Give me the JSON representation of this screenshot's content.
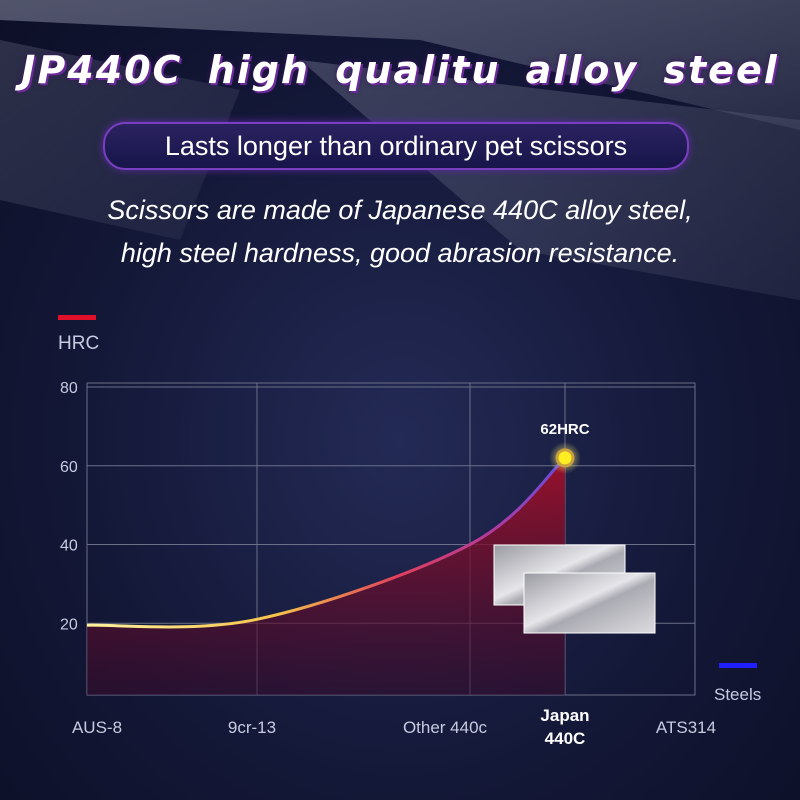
{
  "chart_data": {
    "type": "line",
    "title": "JP440C high qualitu alloy steel",
    "subtitle": "Lasts longer than ordinary pet scissors",
    "description": [
      "Scissors are made of Japanese 440C alloy steel,",
      "high steel hardness, good abrasion resistance."
    ],
    "y_label": "HRC",
    "x_label": "Steels",
    "categories": [
      "AUS-8",
      "9cr-13",
      "Other 440c",
      "Japan 440C",
      "ATS314"
    ],
    "values": [
      19.5,
      21,
      40,
      62,
      null
    ],
    "value_labels": [
      null,
      null,
      null,
      "62HRC",
      null
    ],
    "highlight": "Japan 440C",
    "ylim": [
      0,
      80
    ],
    "yticks": [
      20,
      40,
      60,
      80
    ],
    "grid": true
  }
}
